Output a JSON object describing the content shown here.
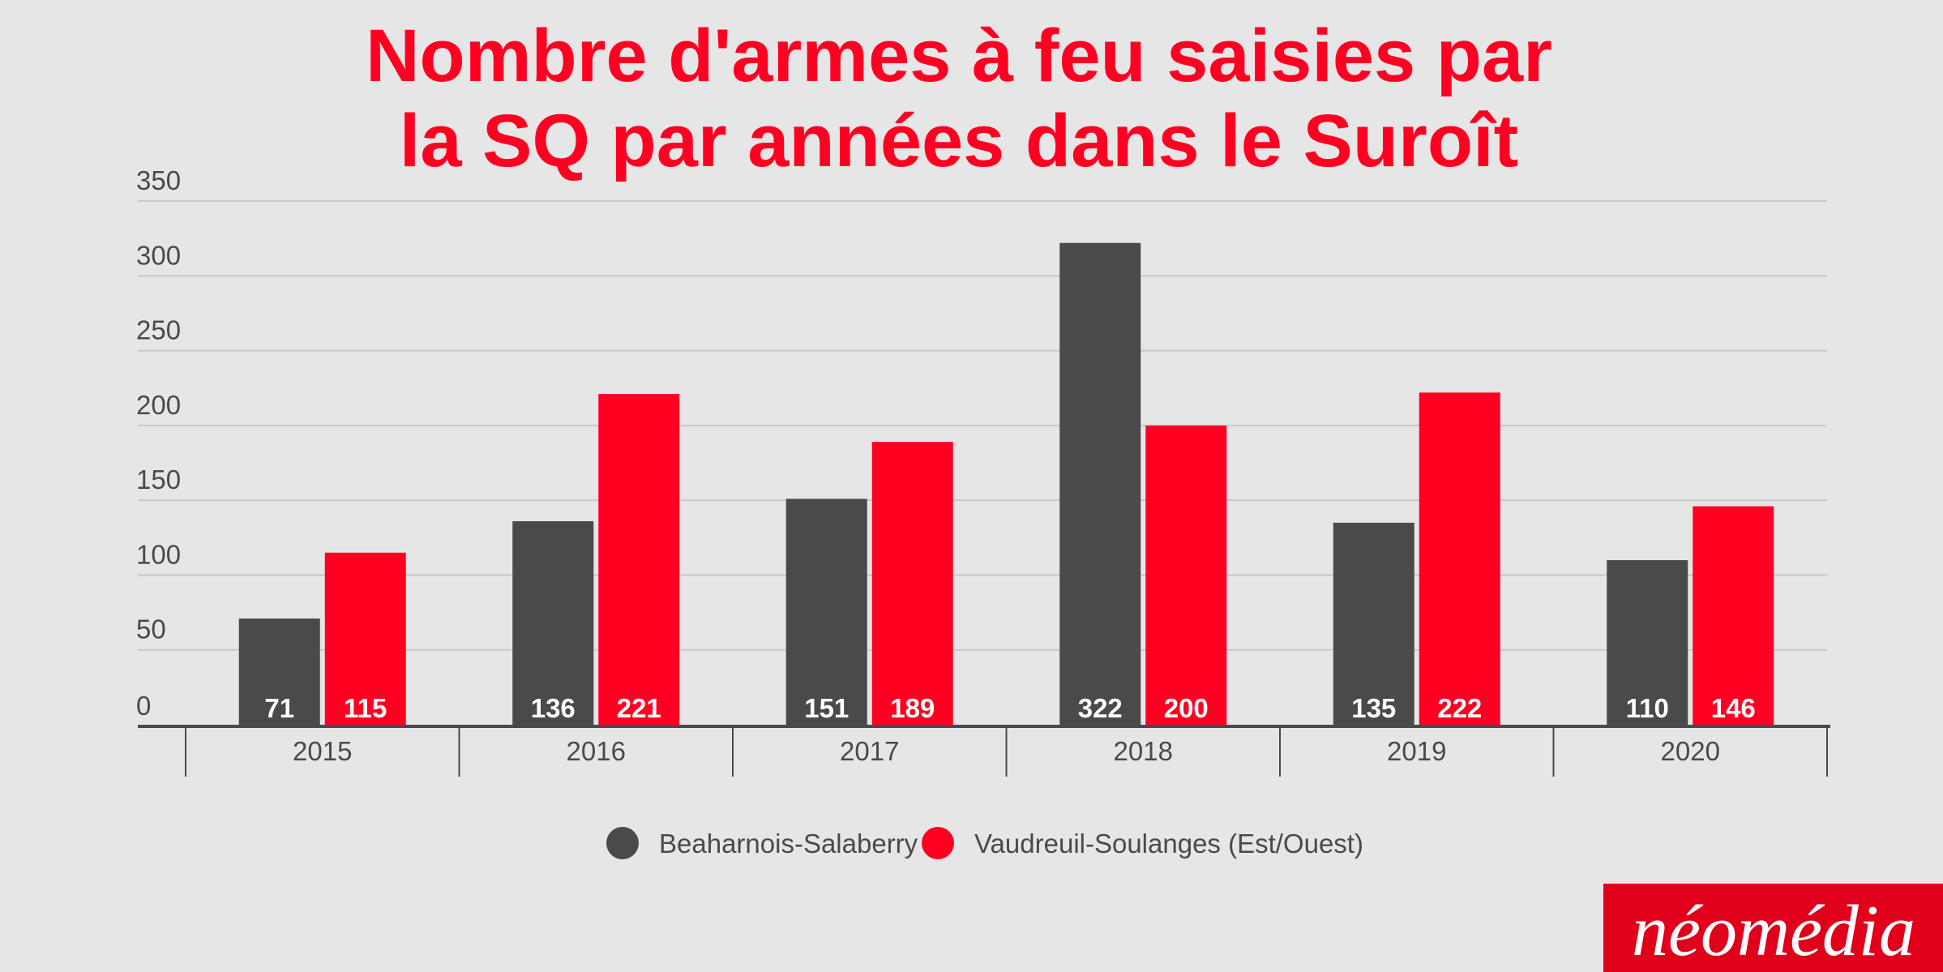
{
  "chart_data": {
    "type": "bar",
    "title_lines": [
      "Nombre d'armes à feu saisies par",
      "la SQ par années dans le Suroît"
    ],
    "categories": [
      "2015",
      "2016",
      "2017",
      "2018",
      "2019",
      "2020"
    ],
    "series": [
      {
        "name": "Beaharnois-Salaberry",
        "color": "#4a4a4a",
        "values": [
          71,
          136,
          151,
          322,
          135,
          110
        ]
      },
      {
        "name": "Vaudreuil-Soulanges (Est/Ouest)",
        "color": "#ff0022",
        "values": [
          115,
          221,
          189,
          200,
          222,
          146
        ]
      }
    ],
    "ylim": [
      0,
      350
    ],
    "yticks": [
      0,
      50,
      100,
      150,
      200,
      250,
      300,
      350
    ],
    "grid": true,
    "legend_position": "bottom-center",
    "data_labels": "inside-bottom",
    "colors": {
      "background": "#e6e6e6",
      "title": "#ff0022",
      "axis": "#4a4a4a",
      "grid": "#c8c8c8",
      "label_text": "#ffffff"
    }
  },
  "branding": {
    "logo_text": "néomédia",
    "logo_bg": "#e0001b",
    "logo_fg": "#ffffff"
  }
}
